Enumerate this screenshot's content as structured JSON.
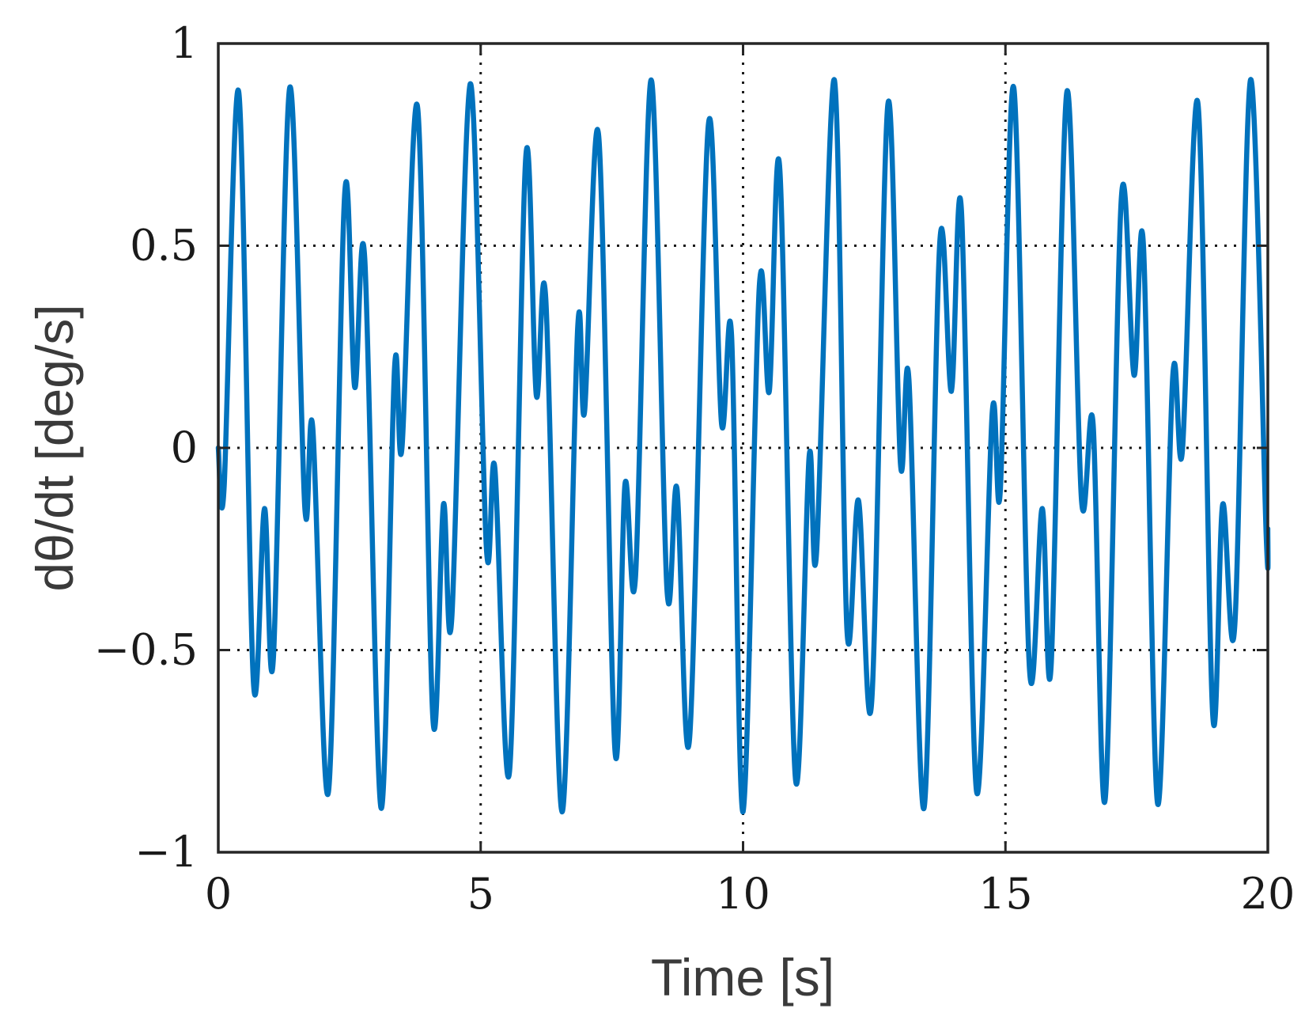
{
  "chart_data": {
    "type": "line",
    "title": "",
    "xlabel": "Time [s]",
    "ylabel": "dθ/dt [deg/s]",
    "xlim": [
      0,
      20
    ],
    "ylim": [
      -1,
      1
    ],
    "grid": true,
    "grid_style": "dotted",
    "x_ticks": [
      0,
      5,
      10,
      15,
      20
    ],
    "x_tick_labels": [
      "0",
      "5",
      "10",
      "15",
      "20"
    ],
    "y_ticks": [
      -1,
      -0.5,
      0,
      0.5,
      1
    ],
    "y_tick_labels": [
      "−1",
      "−0.5",
      "0",
      "0.5",
      "1"
    ],
    "line_color": "#0072BD",
    "series": [
      {
        "name": "",
        "x": [
          0.0,
          0.11,
          0.39,
          0.67,
          0.88,
          1.05,
          1.36,
          1.65,
          1.8,
          2.1,
          2.41,
          2.6,
          2.79,
          3.1,
          3.36,
          3.5,
          3.8,
          4.09,
          4.29,
          4.45,
          4.8,
          5.11,
          5.27,
          5.55,
          5.86,
          6.06,
          6.24,
          6.55,
          6.85,
          6.98,
          7.25,
          7.56,
          7.75,
          7.95,
          8.25,
          8.55,
          8.74,
          8.98,
          9.34,
          9.59,
          9.78,
          10.0,
          10.31,
          10.5,
          10.7,
          11.0,
          11.26,
          11.4,
          11.74,
          11.98,
          12.2,
          12.45,
          12.76,
          13.0,
          13.16,
          13.45,
          13.75,
          13.97,
          14.16,
          14.45,
          14.75,
          14.9,
          15.16,
          15.46,
          15.7,
          15.87,
          16.17,
          16.45,
          16.67,
          16.9,
          17.21,
          17.45,
          17.63,
          17.9,
          18.19,
          18.37,
          18.67,
          18.95,
          19.14,
          19.37,
          19.67,
          19.97,
          20.0
        ],
        "y": [
          0.0,
          -0.1,
          0.88,
          -0.58,
          -0.15,
          -0.52,
          0.89,
          -0.15,
          0.05,
          -0.85,
          0.63,
          0.15,
          0.47,
          -0.89,
          0.2,
          0.0,
          0.84,
          -0.67,
          -0.14,
          -0.42,
          0.9,
          -0.25,
          -0.05,
          -0.8,
          0.72,
          0.13,
          0.37,
          -0.9,
          0.3,
          0.09,
          0.77,
          -0.75,
          -0.09,
          -0.32,
          0.91,
          -0.35,
          -0.1,
          -0.72,
          0.8,
          0.06,
          0.28,
          -0.9,
          0.4,
          0.14,
          0.69,
          -0.82,
          -0.02,
          -0.26,
          0.91,
          -0.45,
          -0.13,
          -0.63,
          0.85,
          -0.04,
          0.17,
          -0.89,
          0.51,
          0.14,
          0.59,
          -0.85,
          0.09,
          -0.11,
          0.89,
          -0.55,
          -0.15,
          -0.54,
          0.88,
          -0.13,
          0.06,
          -0.87,
          0.62,
          0.18,
          0.5,
          -0.88,
          0.18,
          -0.01,
          0.85,
          -0.66,
          -0.14,
          -0.44,
          0.91,
          -0.22,
          -0.2
        ]
      }
    ]
  }
}
